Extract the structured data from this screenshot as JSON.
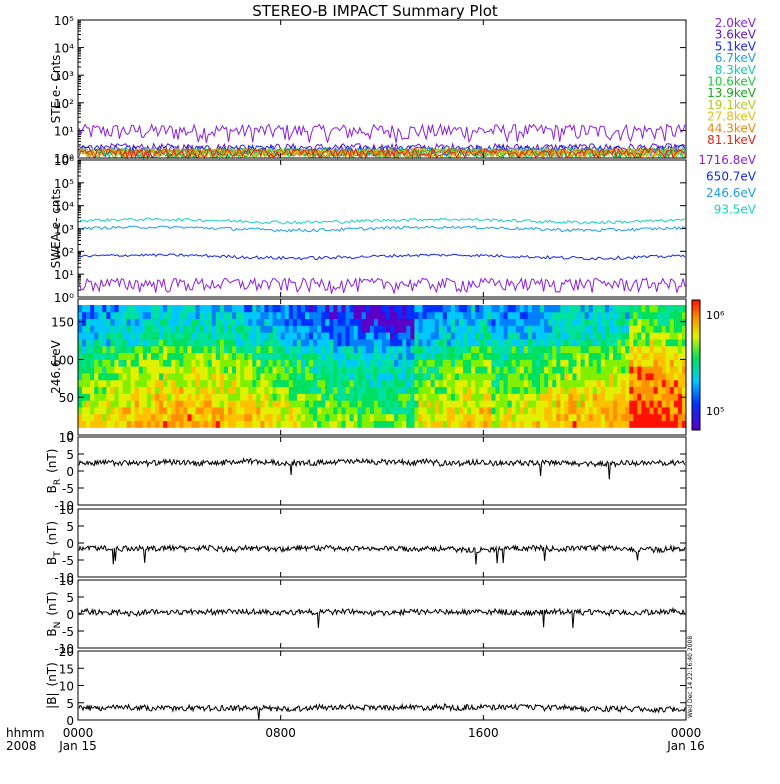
{
  "title": "STEREO-B IMPACT Summary Plot",
  "x_axis": {
    "ticks": [
      {
        "hour": 0,
        "time": "0000",
        "date": "Jan 15"
      },
      {
        "hour": 8,
        "time": "0800",
        "date": ""
      },
      {
        "hour": 16,
        "time": "1600",
        "date": ""
      },
      {
        "hour": 24,
        "time": "0000",
        "date": "Jan 16"
      }
    ],
    "format_label": "hhmm",
    "year_label": "2008",
    "range_hours": [
      0,
      24
    ]
  },
  "side_stamp": "Wed Dec 14 22:16:40 2008",
  "chart_data": [
    {
      "type": "line",
      "panel": "STE",
      "ylabel": "STE e- Cnts",
      "yscale": "log",
      "ylim": [
        1,
        100000
      ],
      "ytick_labels": [
        "10⁰",
        "10¹",
        "10²",
        "10³",
        "10⁴",
        "10⁵"
      ],
      "series": [
        {
          "name": "2.0keV",
          "color": "#8a20d8",
          "level": 10
        },
        {
          "name": "3.6keV",
          "color": "#5a18c8",
          "level": 1.5
        },
        {
          "name": "5.1keV",
          "color": "#1428e6",
          "level": 1.3
        },
        {
          "name": "6.7keV",
          "color": "#1e9ee0",
          "level": 1.1
        },
        {
          "name": "8.3keV",
          "color": "#18c8a8",
          "level": 1.0
        },
        {
          "name": "10.6keV",
          "color": "#20c840",
          "level": 1.0
        },
        {
          "name": "13.9keV",
          "color": "#18a818",
          "level": 1.0
        },
        {
          "name": "19.1keV",
          "color": "#b8c818",
          "level": 1.0
        },
        {
          "name": "27.8keV",
          "color": "#e8c018",
          "level": 1.0
        },
        {
          "name": "44.3keV",
          "color": "#e88a18",
          "level": 1.0
        },
        {
          "name": "81.1keV",
          "color": "#d82818",
          "level": 1.0
        }
      ]
    },
    {
      "type": "line",
      "panel": "SWEA",
      "ylabel": "SWEA e- cnts",
      "yscale": "log",
      "ylim": [
        1,
        1000000
      ],
      "ytick_labels": [
        "10⁰",
        "10¹",
        "10²",
        "10³",
        "10⁴",
        "10⁵",
        "10⁶"
      ],
      "series": [
        {
          "name": "1716.8eV",
          "color": "#8a20d8",
          "level": 4
        },
        {
          "name": "650.7eV",
          "color": "#1428e6",
          "level": 60
        },
        {
          "name": "246.6eV",
          "color": "#1e9ee0",
          "level": 1000
        },
        {
          "name": "93.5eV",
          "color": "#18d0c0",
          "level": 2200
        }
      ]
    },
    {
      "type": "heatmap",
      "panel": "PAD",
      "ylabel": "246.6 eV",
      "ylim": [
        0,
        180
      ],
      "yticks": [
        0,
        50,
        100,
        150
      ],
      "colorbar": {
        "scale": "log",
        "labels": [
          "10⁵",
          "10⁶"
        ],
        "range": [
          100000,
          1000000
        ]
      }
    },
    {
      "type": "line",
      "panel": "BR",
      "ylabel_main": "B",
      "ylabel_sub": "R",
      "ylabel_unit": "(nT)",
      "ylim": [
        -10,
        10
      ],
      "yticks": [
        -10,
        -5,
        0,
        5,
        10
      ],
      "mean": 2.5,
      "color": "#000000"
    },
    {
      "type": "line",
      "panel": "BT",
      "ylabel_main": "B",
      "ylabel_sub": "T",
      "ylabel_unit": "(nT)",
      "ylim": [
        -10,
        10
      ],
      "yticks": [
        -10,
        -5,
        0,
        5,
        10
      ],
      "mean": -1.5,
      "color": "#000000"
    },
    {
      "type": "line",
      "panel": "BN",
      "ylabel_main": "B",
      "ylabel_sub": "N",
      "ylabel_unit": "(nT)",
      "ylim": [
        -10,
        10
      ],
      "yticks": [
        -10,
        -5,
        0,
        5,
        10
      ],
      "mean": 0.5,
      "color": "#000000"
    },
    {
      "type": "line",
      "panel": "Bmag",
      "ylabel_main": "|B|",
      "ylabel_sub": "",
      "ylabel_unit": "(nT)",
      "ylim": [
        0,
        20
      ],
      "yticks": [
        0,
        5,
        10,
        15,
        20
      ],
      "mean": 3.5,
      "color": "#000000"
    }
  ]
}
